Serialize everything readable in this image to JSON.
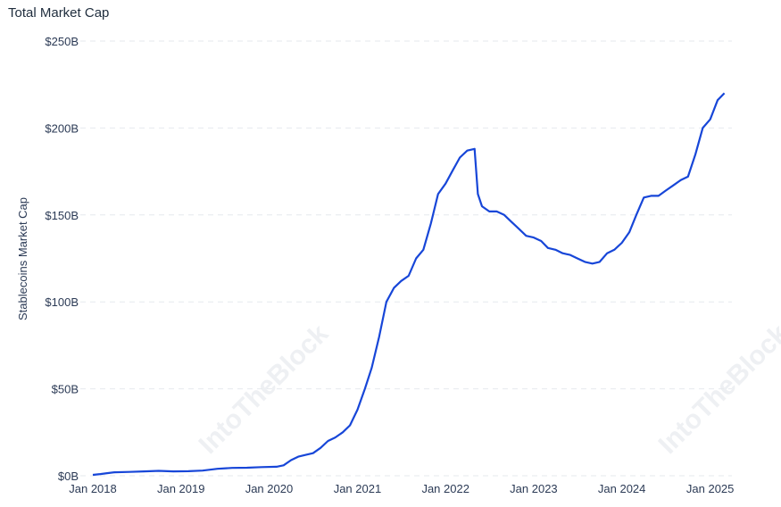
{
  "chart_data": {
    "type": "line",
    "title": "Total Market Cap",
    "ylabel": "Stablecoins Market Cap",
    "xlabel": "",
    "ylim": [
      0,
      250
    ],
    "y_unit": "billion USD",
    "grid": true,
    "legend": "none",
    "y_ticks": [
      {
        "value": 0,
        "label": "$0B"
      },
      {
        "value": 50,
        "label": "$50B"
      },
      {
        "value": 100,
        "label": "$100B"
      },
      {
        "value": 150,
        "label": "$150B"
      },
      {
        "value": 200,
        "label": "$200B"
      },
      {
        "value": 250,
        "label": "$250B"
      }
    ],
    "x_ticks": [
      {
        "value": "2018-01",
        "label": "Jan 2018"
      },
      {
        "value": "2019-01",
        "label": "Jan 2019"
      },
      {
        "value": "2020-01",
        "label": "Jan 2020"
      },
      {
        "value": "2021-01",
        "label": "Jan 2021"
      },
      {
        "value": "2022-01",
        "label": "Jan 2022"
      },
      {
        "value": "2023-01",
        "label": "Jan 2023"
      },
      {
        "value": "2024-01",
        "label": "Jan 2024"
      },
      {
        "value": "2025-01",
        "label": "Jan 2025"
      }
    ],
    "series": [
      {
        "color": "#1746d8",
        "points": [
          [
            "2018-01",
            0.5
          ],
          [
            "2018-02",
            1.0
          ],
          [
            "2018-03",
            1.5
          ],
          [
            "2018-04",
            2.0
          ],
          [
            "2018-06",
            2.2
          ],
          [
            "2018-08",
            2.5
          ],
          [
            "2018-10",
            2.8
          ],
          [
            "2018-12",
            2.5
          ],
          [
            "2019-02",
            2.6
          ],
          [
            "2019-04",
            3.0
          ],
          [
            "2019-06",
            4.0
          ],
          [
            "2019-08",
            4.5
          ],
          [
            "2019-10",
            4.6
          ],
          [
            "2019-12",
            5.0
          ],
          [
            "2020-02",
            5.2
          ],
          [
            "2020-03",
            6.0
          ],
          [
            "2020-04",
            9.0
          ],
          [
            "2020-05",
            11.0
          ],
          [
            "2020-06",
            12.0
          ],
          [
            "2020-07",
            13.0
          ],
          [
            "2020-08",
            16.0
          ],
          [
            "2020-09",
            20.0
          ],
          [
            "2020-10",
            22.0
          ],
          [
            "2020-11",
            25.0
          ],
          [
            "2020-12",
            29.0
          ],
          [
            "2021-01",
            38.0
          ],
          [
            "2021-02",
            50.0
          ],
          [
            "2021-03",
            62.0
          ],
          [
            "2021-04",
            80.0
          ],
          [
            "2021-05",
            100.0
          ],
          [
            "2021-06",
            108.0
          ],
          [
            "2021-07",
            112.0
          ],
          [
            "2021-08",
            115.0
          ],
          [
            "2021-09",
            125.0
          ],
          [
            "2021-10",
            130.0
          ],
          [
            "2021-11",
            145.0
          ],
          [
            "2021-12",
            162.0
          ],
          [
            "2022-01",
            168.0
          ],
          [
            "2022-02",
            176.0
          ],
          [
            "2022-03",
            183.0
          ],
          [
            "2022-04",
            187.0
          ],
          [
            "2022-05",
            188.0
          ],
          [
            "2022-05-15",
            162.0
          ],
          [
            "2022-06",
            155.0
          ],
          [
            "2022-07",
            152.0
          ],
          [
            "2022-08",
            152.0
          ],
          [
            "2022-09",
            150.0
          ],
          [
            "2022-10",
            146.0
          ],
          [
            "2022-11",
            142.0
          ],
          [
            "2022-12",
            138.0
          ],
          [
            "2023-01",
            137.0
          ],
          [
            "2023-02",
            135.0
          ],
          [
            "2023-03",
            131.0
          ],
          [
            "2023-04",
            130.0
          ],
          [
            "2023-05",
            128.0
          ],
          [
            "2023-06",
            127.0
          ],
          [
            "2023-07",
            125.0
          ],
          [
            "2023-08",
            123.0
          ],
          [
            "2023-09",
            122.0
          ],
          [
            "2023-10",
            123.0
          ],
          [
            "2023-11",
            128.0
          ],
          [
            "2023-12",
            130.0
          ],
          [
            "2024-01",
            134.0
          ],
          [
            "2024-02",
            140.0
          ],
          [
            "2024-03",
            150.0
          ],
          [
            "2024-04",
            160.0
          ],
          [
            "2024-05",
            161.0
          ],
          [
            "2024-06",
            161.0
          ],
          [
            "2024-07",
            164.0
          ],
          [
            "2024-08",
            167.0
          ],
          [
            "2024-09",
            170.0
          ],
          [
            "2024-10",
            172.0
          ],
          [
            "2024-11",
            185.0
          ],
          [
            "2024-12",
            200.0
          ],
          [
            "2025-01",
            205.0
          ],
          [
            "2025-02",
            216.0
          ],
          [
            "2025-03",
            220.0
          ]
        ]
      }
    ]
  },
  "watermark": {
    "text": "IntoTheBlock"
  }
}
